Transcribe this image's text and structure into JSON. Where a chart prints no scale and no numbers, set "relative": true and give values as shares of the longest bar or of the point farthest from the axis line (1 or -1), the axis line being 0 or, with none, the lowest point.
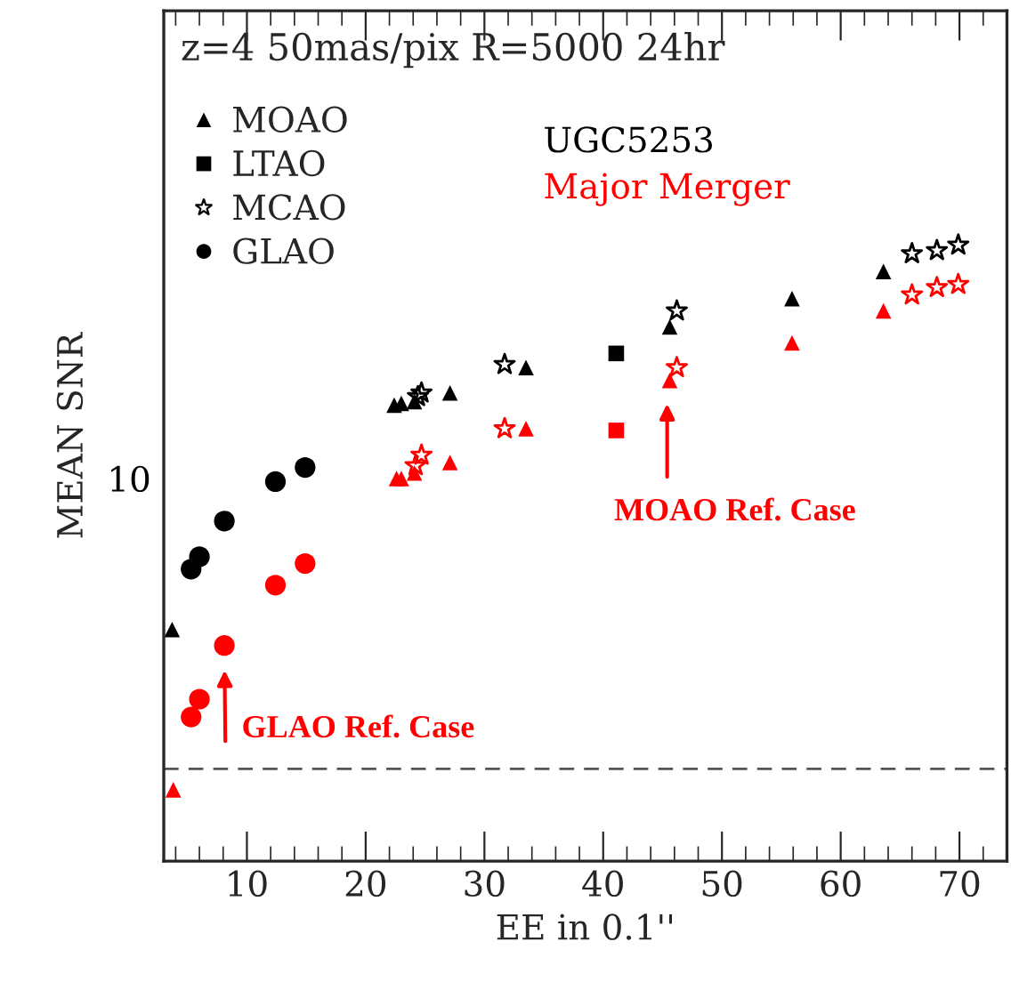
{
  "chart_data": {
    "type": "scatter",
    "title": "z=4 50mas/pix R=5000 24hr",
    "xlabel": "EE in 0.1''",
    "ylabel": "MEAN SNR",
    "relative": true,
    "xlim": [
      3,
      74
    ],
    "xticks": [
      10,
      20,
      30,
      40,
      50,
      60,
      70
    ],
    "legend": "top left",
    "grid": false,
    "series": [
      {
        "name": "MOAO",
        "color": "#000000",
        "marker": "triangle",
        "x": [
          3.7,
          22.4,
          23.0,
          24.1,
          27.1,
          33.5,
          45.6,
          55.9,
          63.6
        ],
        "values": [
          0.376,
          0.74,
          0.743,
          0.746,
          0.76,
          0.801,
          0.867,
          0.913,
          0.957
        ]
      },
      {
        "name": "LTAO",
        "color": "#000000",
        "marker": "square",
        "x": [
          41.1
        ],
        "values": [
          0.824
        ]
      },
      {
        "name": "MCAO",
        "color": "#000000",
        "marker": "star",
        "x": [
          24.4,
          24.7,
          31.7,
          46.2,
          66.0,
          68.1,
          69.9
        ],
        "values": [
          0.754,
          0.76,
          0.806,
          0.893,
          0.986,
          0.991,
          1
        ]
      },
      {
        "name": "GLAO",
        "color": "#000000",
        "marker": "circle",
        "x": [
          5.3,
          6.0,
          8.1,
          12.4,
          14.9
        ],
        "values": [
          0.474,
          0.494,
          0.552,
          0.616,
          0.639
        ]
      },
      {
        "color": "#ff0000",
        "marker": "triangle",
        "x": [
          3.8,
          22.6,
          23.0,
          24.1,
          27.1,
          33.5,
          45.6,
          55.9,
          63.6
        ],
        "values": [
          0.116,
          0.621,
          0.621,
          0.63,
          0.647,
          0.702,
          0.78,
          0.841,
          0.893
        ]
      },
      {
        "color": "#ff0000",
        "marker": "square",
        "x": [
          41.1
        ],
        "values": [
          0.699
        ]
      },
      {
        "color": "#ff0000",
        "marker": "star",
        "x": [
          24.2,
          24.7,
          31.7,
          46.2,
          66.0,
          68.1,
          69.9
        ],
        "values": [
          0.642,
          0.659,
          0.702,
          0.801,
          0.919,
          0.931,
          0.936
        ]
      },
      {
        "color": "#ff0000",
        "marker": "circle",
        "x": [
          5.3,
          6.0,
          8.1,
          12.4,
          14.9
        ],
        "values": [
          0.234,
          0.263,
          0.35,
          0.448,
          0.483
        ]
      }
    ],
    "ref_lines": [
      {
        "axis": "y",
        "value": 0.15,
        "color": "#555555",
        "line_style": "dashed"
      }
    ],
    "annotations": [
      "UGC5253",
      "Major Merger",
      "10",
      "MOAO Ref. Case",
      {
        "text": "GLAO Ref. Case",
        "x": 8.1,
        "y": 0.35
      }
    ]
  }
}
